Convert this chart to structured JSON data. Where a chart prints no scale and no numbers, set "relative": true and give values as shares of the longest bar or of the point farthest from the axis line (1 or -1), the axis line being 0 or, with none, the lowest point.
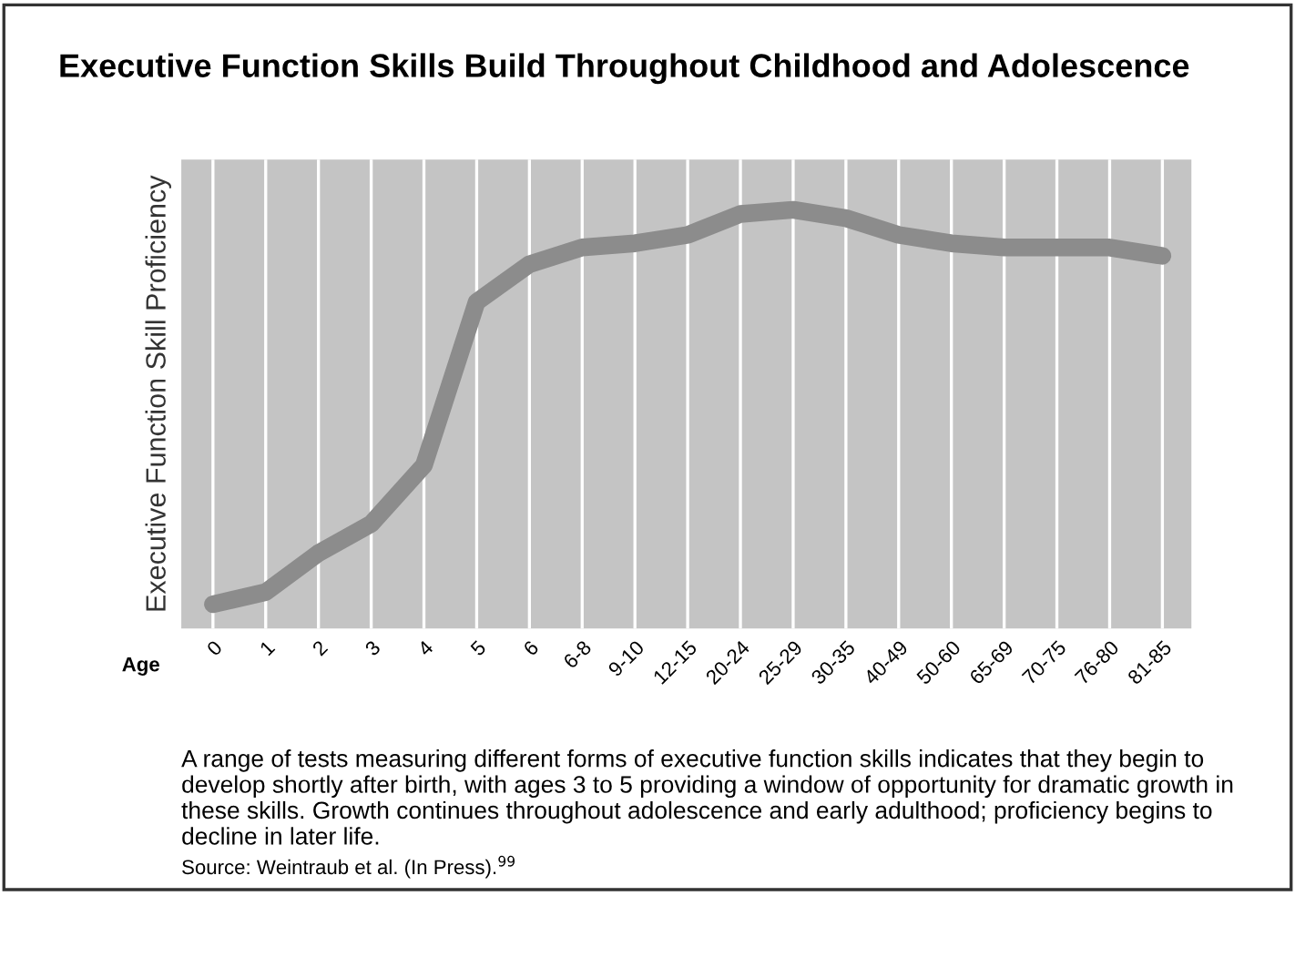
{
  "chart_data": {
    "type": "line",
    "title": "Executive Function Skills Build Throughout Childhood and Adolescence",
    "xlabel": "Age",
    "ylabel": "Executive Function Skill Proficiency",
    "categories": [
      "0",
      "1",
      "2",
      "3",
      "4",
      "5",
      "6",
      "6-8",
      "9-10",
      "12-15",
      "20-24",
      "25-29",
      "30-35",
      "40-49",
      "50-60",
      "65-69",
      "70-75",
      "76-80",
      "81-85"
    ],
    "series": [
      {
        "color": "#8c8c8c",
        "values": [
          0.058,
          0.087,
          0.18,
          0.25,
          0.39,
          0.78,
          0.87,
          0.91,
          0.92,
          0.94,
          0.99,
          1,
          0.98,
          0.94,
          0.92,
          0.91,
          0.91,
          0.91,
          0.89
        ]
      }
    ],
    "relative": true,
    "grid": "x",
    "marker": "none",
    "line_style": "solid",
    "annotations": [
      "A range of tests measuring different forms of executive function skills indicates that they begin to develop shortly after birth, with ages 3 to 5 providing a window of opportunity for dramatic growth in these skills. Growth continues throughout adolescence and early adulthood; proficiency begins to decline in later life.",
      "Source: Weintraub et al. (In Press).$^{99}$"
    ]
  }
}
